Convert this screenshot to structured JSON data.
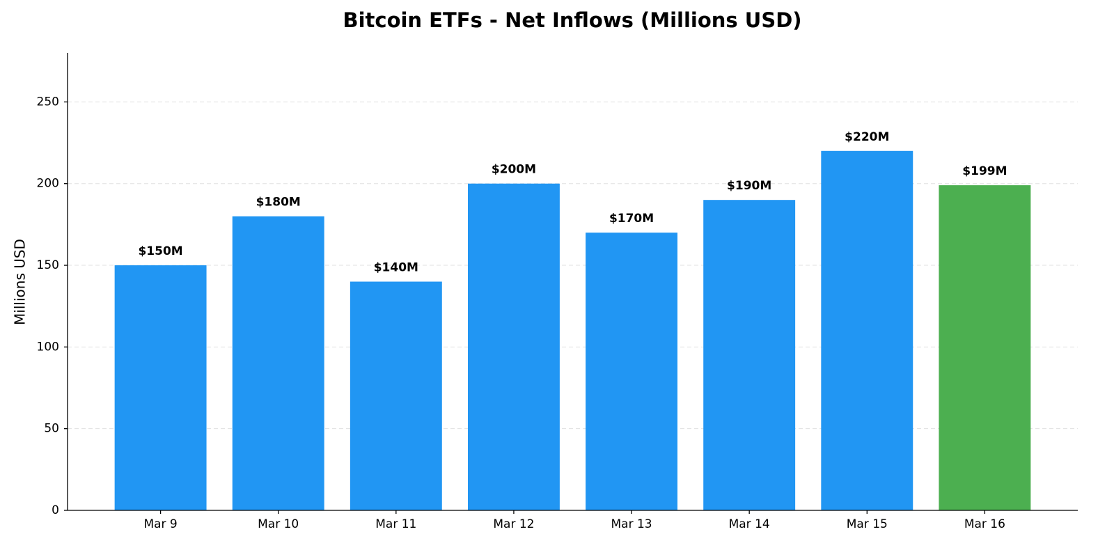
{
  "chart_data": {
    "type": "bar",
    "title": "Bitcoin ETFs - Net Inflows (Millions USD)",
    "y_label": "Millions USD",
    "categories": [
      "Mar 9",
      "Mar 10",
      "Mar 11",
      "Mar 12",
      "Mar 13",
      "Mar 14",
      "Mar 15",
      "Mar 16"
    ],
    "values": [
      150,
      180,
      140,
      200,
      170,
      190,
      220,
      199
    ],
    "value_labels": [
      "$150M",
      "$180M",
      "$140M",
      "$200M",
      "$170M",
      "$190M",
      "$220M",
      "$199M"
    ],
    "colors": [
      "#2196f3",
      "#2196f3",
      "#2196f3",
      "#2196f3",
      "#2196f3",
      "#2196f3",
      "#2196f3",
      "#4caf50"
    ],
    "ylim": [
      0,
      280
    ],
    "yticks": [
      0,
      50,
      100,
      150,
      200,
      250
    ],
    "grid": true
  }
}
